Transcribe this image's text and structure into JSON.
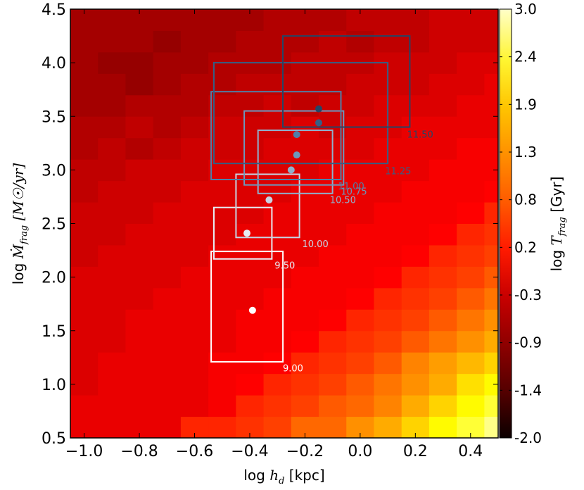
{
  "chart_data": {
    "type": "heatmap",
    "title": "",
    "xlabel_prefix": "log",
    "xlabel_math": "h",
    "xlabel_sub": "d",
    "xlabel_unit": "[kpc]",
    "ylabel_prefix": "log",
    "ylabel_math": "Ṁ",
    "ylabel_sub": "frag",
    "ylabel_unit": "[M☉/yr]",
    "xlim": [
      -1.05,
      0.5
    ],
    "ylim": [
      0.5,
      4.5
    ],
    "x_ticks": [
      -1.0,
      -0.8,
      -0.6,
      -0.4,
      -0.2,
      0.0,
      0.2,
      0.4
    ],
    "x_tick_labels": [
      "−1.0",
      "−0.8",
      "−0.6",
      "−0.4",
      "−0.2",
      "0.0",
      "0.2",
      "0.4"
    ],
    "y_ticks": [
      0.5,
      1.0,
      1.5,
      2.0,
      2.5,
      3.0,
      3.5,
      4.0,
      4.5
    ],
    "y_tick_labels": [
      "0.5",
      "1.0",
      "1.5",
      "2.0",
      "2.5",
      "3.0",
      "3.5",
      "4.0",
      "4.5"
    ],
    "grid": false,
    "colorbar": {
      "label_prefix": "log",
      "label_math": "T",
      "label_sub": "frag",
      "label_unit": "[Gyr]",
      "min": -2.0,
      "max": 3.0,
      "tick_labels": [
        "-2.0",
        "-1.4",
        "-0.9",
        "-0.3",
        "0.2",
        "0.8",
        "1.3",
        "1.9",
        "2.4",
        "3.0"
      ]
    },
    "heatmap": {
      "x_edges": [
        -1.05,
        -0.95,
        -0.85,
        -0.75,
        -0.65,
        -0.55,
        -0.45,
        -0.35,
        -0.25,
        -0.15,
        -0.05,
        0.05,
        0.15,
        0.25,
        0.35,
        0.45,
        0.5
      ],
      "y_edges": [
        0.5,
        0.7,
        0.9,
        1.1,
        1.3,
        1.5,
        1.7,
        1.9,
        2.1,
        2.3,
        2.5,
        2.7,
        2.9,
        3.1,
        3.3,
        3.5,
        3.7,
        3.9,
        4.1,
        4.3,
        4.5
      ],
      "values": [
        [
          -0.4,
          -0.4,
          -0.4,
          -0.4,
          0.1,
          0.1,
          0.2,
          0.3,
          0.6,
          0.6,
          0.9,
          1.1,
          1.4,
          1.7,
          2.0,
          2.4
        ],
        [
          -0.4,
          -0.4,
          -0.4,
          -0.4,
          -0.4,
          -0.3,
          0.1,
          0.2,
          0.3,
          0.5,
          0.6,
          0.8,
          1.1,
          1.4,
          1.7,
          2.0
        ],
        [
          -0.5,
          -0.4,
          -0.4,
          -0.4,
          -0.4,
          -0.3,
          -0.2,
          0.1,
          0.2,
          0.3,
          0.5,
          0.7,
          0.9,
          1.1,
          1.5,
          1.7
        ],
        [
          -0.5,
          -0.4,
          -0.4,
          -0.4,
          -0.4,
          -0.3,
          -0.3,
          -0.2,
          0.1,
          0.2,
          0.3,
          0.5,
          0.8,
          1.0,
          1.2,
          1.4
        ],
        [
          -0.5,
          -0.5,
          -0.4,
          -0.4,
          -0.4,
          -0.4,
          -0.3,
          -0.3,
          -0.2,
          0.1,
          0.2,
          0.3,
          0.5,
          0.7,
          0.9,
          1.1
        ],
        [
          -0.5,
          -0.5,
          -0.4,
          -0.4,
          -0.4,
          -0.4,
          -0.3,
          -0.3,
          -0.3,
          -0.2,
          0.1,
          0.2,
          0.3,
          0.5,
          0.7,
          0.9
        ],
        [
          -0.5,
          -0.5,
          -0.5,
          -0.4,
          -0.4,
          -0.4,
          -0.4,
          -0.3,
          -0.3,
          -0.3,
          -0.2,
          0.1,
          0.2,
          0.3,
          0.5,
          0.7
        ],
        [
          -0.5,
          -0.5,
          -0.5,
          -0.5,
          -0.4,
          -0.4,
          -0.4,
          -0.4,
          -0.3,
          -0.3,
          -0.3,
          -0.2,
          0.1,
          0.2,
          0.3,
          0.5
        ],
        [
          -0.6,
          -0.5,
          -0.5,
          -0.5,
          -0.5,
          -0.4,
          -0.4,
          -0.4,
          -0.4,
          -0.3,
          -0.3,
          -0.3,
          -0.2,
          0.1,
          0.2,
          0.3
        ],
        [
          -0.6,
          -0.6,
          -0.5,
          -0.5,
          -0.5,
          -0.5,
          -0.4,
          -0.4,
          -0.4,
          -0.4,
          -0.3,
          -0.3,
          -0.3,
          -0.2,
          0.1,
          0.2
        ],
        [
          -0.6,
          -0.6,
          -0.6,
          -0.5,
          -0.5,
          -0.5,
          -0.5,
          -0.4,
          -0.4,
          -0.4,
          -0.4,
          -0.3,
          -0.3,
          -0.3,
          -0.2,
          0.1
        ],
        [
          -0.7,
          -0.6,
          -0.6,
          -0.6,
          -0.5,
          -0.5,
          -0.5,
          -0.5,
          -0.4,
          -0.4,
          -0.4,
          -0.4,
          -0.3,
          -0.3,
          -0.3,
          -0.2
        ],
        [
          -0.7,
          -0.7,
          -0.6,
          -0.6,
          -0.6,
          -0.5,
          -0.5,
          -0.5,
          -0.5,
          -0.4,
          -0.4,
          -0.4,
          -0.4,
          -0.3,
          -0.3,
          -0.3
        ],
        [
          -0.8,
          -0.7,
          -0.8,
          -0.7,
          -0.6,
          -0.6,
          -0.6,
          -0.5,
          -0.5,
          -0.5,
          -0.5,
          -0.4,
          -0.4,
          -0.4,
          -0.3,
          -0.3
        ],
        [
          -0.8,
          -0.8,
          -0.7,
          -0.8,
          -0.7,
          -0.6,
          -0.6,
          -0.6,
          -0.5,
          -0.6,
          -0.5,
          -0.5,
          -0.4,
          -0.4,
          -0.4,
          -0.4
        ],
        [
          -0.9,
          -0.9,
          -0.8,
          -0.8,
          -0.8,
          -0.7,
          -0.7,
          -0.6,
          -0.7,
          -0.6,
          -0.6,
          -0.5,
          -0.5,
          -0.5,
          -0.4,
          -0.4
        ],
        [
          -0.9,
          -0.9,
          -1.0,
          -0.9,
          -0.8,
          -0.8,
          -0.7,
          -0.7,
          -0.7,
          -0.7,
          -0.6,
          -0.6,
          -0.6,
          -0.5,
          -0.5,
          -0.4
        ],
        [
          -0.9,
          -1.0,
          -1.0,
          -0.9,
          -0.9,
          -0.8,
          -0.8,
          -0.8,
          -0.7,
          -0.7,
          -0.7,
          -0.6,
          -0.6,
          -0.6,
          -0.5,
          -0.5
        ],
        [
          -0.9,
          -0.9,
          -0.9,
          -1.0,
          -0.9,
          -0.9,
          -0.8,
          -0.8,
          -0.8,
          -0.7,
          -0.8,
          -0.7,
          -0.7,
          -0.6,
          -0.6,
          -0.6
        ],
        [
          -0.9,
          -0.9,
          -0.9,
          -0.9,
          -0.9,
          -0.9,
          -0.9,
          -0.8,
          -0.8,
          -0.8,
          -0.7,
          -0.7,
          -0.7,
          -0.6,
          -0.6,
          -0.6
        ]
      ]
    },
    "series": [
      {
        "label": "9.00",
        "point": [
          -0.39,
          1.69
        ],
        "box": [
          -0.54,
          -0.28,
          1.21,
          2.24
        ],
        "color": "#ffffff",
        "label_pos": [
          -0.28,
          1.12
        ]
      },
      {
        "label": "9.50",
        "point": [
          -0.41,
          2.41
        ],
        "box": [
          -0.53,
          -0.32,
          2.17,
          2.65
        ],
        "color": "#e6ecf3",
        "label_pos": [
          -0.31,
          2.08
        ]
      },
      {
        "label": "10.00",
        "point": [
          -0.33,
          2.72
        ],
        "box": [
          -0.45,
          -0.22,
          2.37,
          2.96
        ],
        "color": "#c6d4e3",
        "label_pos": [
          -0.21,
          2.28
        ]
      },
      {
        "label": "10.50",
        "point": [
          -0.25,
          3.0
        ],
        "box": [
          -0.37,
          -0.1,
          2.78,
          3.37
        ],
        "color": "#8fb0cc",
        "label_pos": [
          -0.11,
          2.69
        ]
      },
      {
        "label": "10.75",
        "point": [
          -0.23,
          3.14
        ],
        "box": [
          -0.42,
          -0.06,
          2.86,
          3.55
        ],
        "color": "#6c98bd",
        "label_pos": [
          -0.07,
          2.77
        ]
      },
      {
        "label": "11.00",
        "point": [
          -0.23,
          3.33
        ],
        "box": [
          -0.54,
          -0.07,
          2.91,
          3.73
        ],
        "color": "#4f7fa8",
        "label_pos": [
          -0.08,
          2.82
        ]
      },
      {
        "label": "11.25",
        "point": [
          -0.15,
          3.44
        ],
        "box": [
          -0.53,
          0.1,
          3.06,
          4.0
        ],
        "color": "#355f85",
        "label_pos": [
          0.09,
          2.96
        ]
      },
      {
        "label": "11.50",
        "point": [
          -0.15,
          3.57
        ],
        "box": [
          -0.28,
          0.18,
          3.4,
          4.25
        ],
        "color": "#244667",
        "label_pos": [
          0.17,
          3.3
        ]
      }
    ]
  }
}
